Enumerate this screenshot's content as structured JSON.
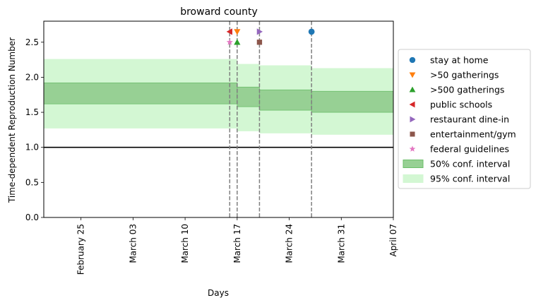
{
  "chart_data": {
    "type": "line",
    "title": "broward county",
    "xlabel": "Days",
    "ylabel": "Time-dependent Reproduction Number",
    "x_range": [
      "2020-02-20",
      "2020-04-07"
    ],
    "ylim": [
      0.0,
      2.8
    ],
    "y_ticks": [
      "0.0",
      "0.5",
      "1.0",
      "1.5",
      "2.0",
      "2.5"
    ],
    "x_ticks": [
      {
        "date": "2020-02-25",
        "label": "February 25"
      },
      {
        "date": "2020-03-03",
        "label": "March 03"
      },
      {
        "date": "2020-03-10",
        "label": "March 10"
      },
      {
        "date": "2020-03-17",
        "label": "March 17"
      },
      {
        "date": "2020-03-24",
        "label": "March 24"
      },
      {
        "date": "2020-03-31",
        "label": "March 31"
      },
      {
        "date": "2020-04-07",
        "label": "April 07"
      }
    ],
    "reference_line": 1.0,
    "ci_segments": [
      {
        "start": "2020-02-20",
        "end": "2020-03-17",
        "ci50": [
          1.62,
          1.92
        ],
        "ci95": [
          1.27,
          2.26
        ]
      },
      {
        "start": "2020-03-17",
        "end": "2020-03-20",
        "ci50": [
          1.58,
          1.86
        ],
        "ci95": [
          1.23,
          2.19
        ]
      },
      {
        "start": "2020-03-20",
        "end": "2020-03-27",
        "ci50": [
          1.53,
          1.82
        ],
        "ci95": [
          1.2,
          2.17
        ]
      },
      {
        "start": "2020-03-27",
        "end": "2020-04-07",
        "ci50": [
          1.5,
          1.8
        ],
        "ci95": [
          1.18,
          2.13
        ]
      }
    ],
    "intervention_lines": [
      "2020-03-16",
      "2020-03-17",
      "2020-03-20",
      "2020-03-27"
    ],
    "series": [
      {
        "name": "stay at home",
        "marker": "circle",
        "color": "#1f77b4",
        "x": "2020-03-27",
        "y": 2.65
      },
      {
        "name": ">50 gatherings",
        "marker": "triangle-down",
        "color": "#ff7f0e",
        "x": "2020-03-17",
        "y": 2.65
      },
      {
        "name": ">500 gatherings",
        "marker": "triangle-up",
        "color": "#2ca02c",
        "x": "2020-03-17",
        "y": 2.5
      },
      {
        "name": "public schools",
        "marker": "triangle-left",
        "color": "#d62728",
        "x": "2020-03-16",
        "y": 2.65
      },
      {
        "name": "restaurant dine-in",
        "marker": "triangle-right",
        "color": "#9467bd",
        "x": "2020-03-20",
        "y": 2.65
      },
      {
        "name": "entertainment/gym",
        "marker": "square",
        "color": "#8c564b",
        "x": "2020-03-20",
        "y": 2.5
      },
      {
        "name": "federal guidelines",
        "marker": "star",
        "color": "#e377c2",
        "x": "2020-03-16",
        "y": 2.5
      }
    ],
    "legend": {
      "placement": "right",
      "entries": [
        {
          "label": "stay at home",
          "kind": "marker",
          "marker": "circle",
          "color": "#1f77b4"
        },
        {
          "label": ">50 gatherings",
          "kind": "marker",
          "marker": "triangle-down",
          "color": "#ff7f0e"
        },
        {
          "label": ">500 gatherings",
          "kind": "marker",
          "marker": "triangle-up",
          "color": "#2ca02c"
        },
        {
          "label": "public schools",
          "kind": "marker",
          "marker": "triangle-left",
          "color": "#d62728"
        },
        {
          "label": "restaurant dine-in",
          "kind": "marker",
          "marker": "triangle-right",
          "color": "#9467bd"
        },
        {
          "label": "entertainment/gym",
          "kind": "marker",
          "marker": "square",
          "color": "#8c564b"
        },
        {
          "label": "federal guidelines",
          "kind": "marker",
          "marker": "star",
          "color": "#e377c2"
        },
        {
          "label": "50% conf. interval",
          "kind": "patch",
          "color": "#2ca02c"
        },
        {
          "label": "95% conf. interval",
          "kind": "patch",
          "color": "#90ee90"
        }
      ]
    },
    "colors": {
      "ci50_fill": "#97d094",
      "ci50_edge": "#6cbf6a",
      "ci95_fill": "#d3f7d3",
      "reference_line": "#000000",
      "intervention_line": "#7f7f7f"
    }
  }
}
